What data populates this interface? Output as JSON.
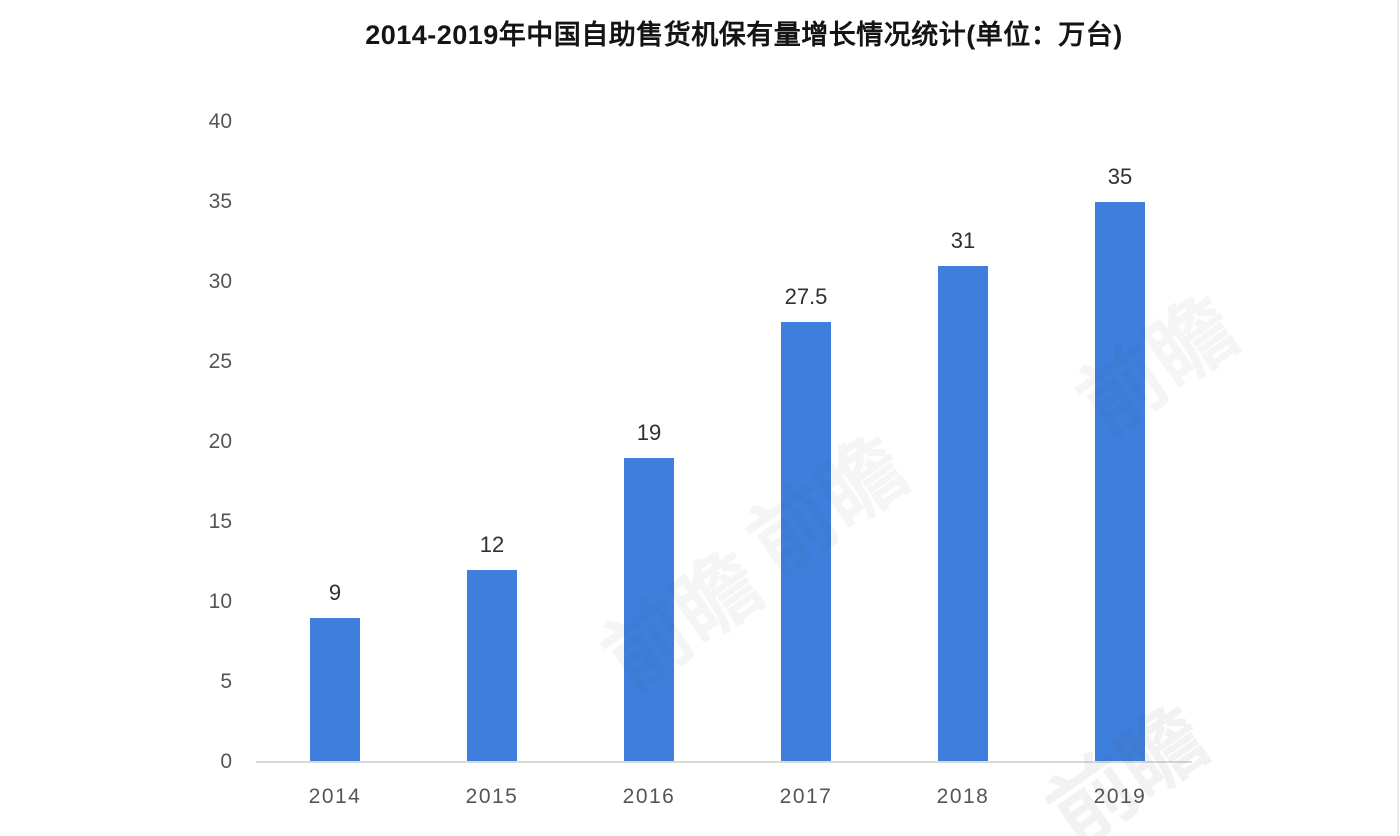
{
  "chart_data": {
    "type": "bar",
    "title": "2014-2019年中国自助售货机保有量增长情况统计(单位：万台)",
    "categories": [
      "2014",
      "2015",
      "2016",
      "2017",
      "2018",
      "2019"
    ],
    "values": [
      9,
      12,
      19,
      27.5,
      31,
      35
    ],
    "value_labels": [
      "9",
      "12",
      "19",
      "27.5",
      "31",
      "35"
    ],
    "xlabel": "",
    "ylabel": "",
    "ylim": [
      0,
      40
    ],
    "yticks": [
      0,
      5,
      10,
      15,
      20,
      25,
      30,
      35,
      40
    ],
    "grid": false,
    "legend": "none",
    "bar_color": "#3e7edd",
    "axis_line_color": "#d9d9d9",
    "tick_label_color": "#555555",
    "value_label_color": "#303030",
    "title_color": "#141414"
  },
  "watermark": {
    "text": "前瞻"
  }
}
